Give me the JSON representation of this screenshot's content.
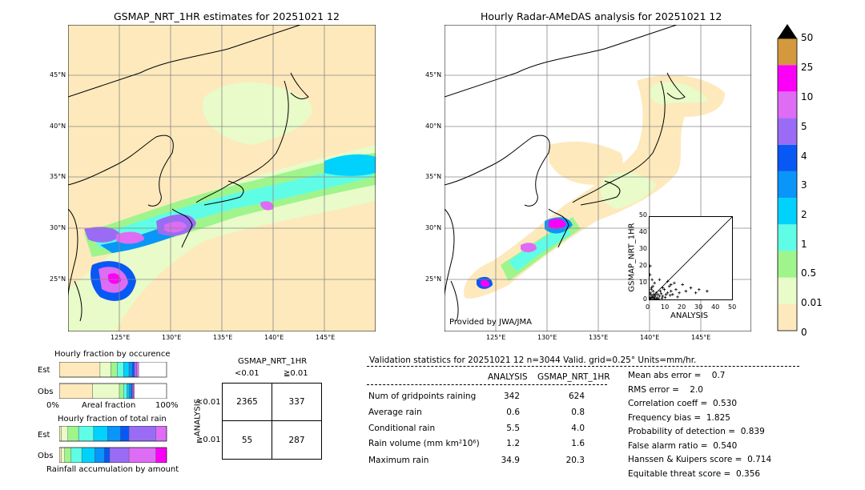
{
  "left_map": {
    "title": "GSMAP_NRT_1HR estimates for 20251021 12",
    "lat_labels": [
      "45°N",
      "40°N",
      "35°N",
      "30°N",
      "25°N"
    ],
    "lon_labels": [
      "125°E",
      "130°E",
      "135°E",
      "140°E",
      "145°E"
    ]
  },
  "right_map": {
    "title": "Hourly Radar-AMeDAS analysis for 20251021 12",
    "lat_labels": [
      "45°N",
      "40°N",
      "35°N",
      "30°N",
      "25°N"
    ],
    "lon_labels": [
      "125°E",
      "130°E",
      "135°E",
      "140°E",
      "145°E"
    ],
    "credit": "Provided by JWA/JMA"
  },
  "colorbar": {
    "labels": [
      "0",
      "0.01",
      "0.5",
      "1",
      "2",
      "3",
      "4",
      "5",
      "10",
      "25",
      "50"
    ],
    "colors": [
      "#fde9bc",
      "#e8fbc8",
      "#9ff58c",
      "#5ffde6",
      "#00d2fd",
      "#0a95f8",
      "#0858f5",
      "#9a6cf5",
      "#de6cf5",
      "#fa00f7",
      "#d4993f"
    ],
    "overflow_color": "#000000"
  },
  "scatter": {
    "ylabel": "GSMAP_NRT_1HR",
    "xlabel": "ANALYSIS",
    "ticks": [
      "0",
      "10",
      "20",
      "30",
      "40",
      "50"
    ]
  },
  "occurrence": {
    "title": "Hourly fraction by occurence",
    "row_labels": [
      "Est",
      "Obs"
    ],
    "axis_left": "0%",
    "axis_mid": "Areal fraction",
    "axis_right": "100%"
  },
  "total_rain": {
    "title": "Hourly fraction of total rain",
    "row_labels": [
      "Est",
      "Obs"
    ],
    "footer": "Rainfall accumulation by amount"
  },
  "contingency": {
    "title": "GSMAP_NRT_1HR",
    "col_labels": [
      "<0.01",
      "≧0.01"
    ],
    "row_axis": "ANALYSIS",
    "row_labels": [
      "<0.01",
      "≧0.01"
    ],
    "cells": [
      "2365",
      "337",
      "55",
      "287"
    ]
  },
  "validation": {
    "header": "Validation statistics for 20251021 12  n=3044 Valid. grid=0.25° Units=mm/hr.",
    "col_analysis": "ANALYSIS",
    "col_gsmap": "GSMAP_NRT_1HR",
    "rows": [
      {
        "label": "Num of gridpoints raining",
        "a": "342",
        "g": "624"
      },
      {
        "label": "Average rain",
        "a": "0.6",
        "g": "0.8"
      },
      {
        "label": "Conditional rain",
        "a": "5.5",
        "g": "4.0"
      },
      {
        "label": "Rain volume (mm km²10⁶)",
        "a": "1.2",
        "g": "1.6"
      },
      {
        "label": "Maximum rain",
        "a": "34.9",
        "g": "20.3"
      }
    ],
    "scores": [
      "Mean abs error =    0.7",
      "RMS error =    2.0",
      "Correlation coeff =  0.530",
      "Frequency bias =  1.825",
      "Probability of detection =  0.839",
      "False alarm ratio =  0.540",
      "Hanssen & Kuipers score =  0.714",
      "Equitable threat score =  0.356"
    ]
  },
  "chart_data": [
    {
      "type": "heatmap",
      "title": "GSMAP_NRT_1HR estimates for 20251021 12",
      "x_ticks": [
        "125°E",
        "130°E",
        "135°E",
        "140°E",
        "145°E"
      ],
      "y_ticks": [
        "45°N",
        "40°N",
        "35°N",
        "30°N",
        "25°N"
      ]
    },
    {
      "type": "heatmap",
      "title": "Hourly Radar-AMeDAS analysis for 20251021 12",
      "x_ticks": [
        "125°E",
        "130°E",
        "135°E",
        "140°E",
        "145°E"
      ],
      "y_ticks": [
        "45°N",
        "40°N",
        "35°N",
        "30°N",
        "25°N"
      ]
    },
    {
      "type": "scatter",
      "xlabel": "ANALYSIS",
      "ylabel": "GSMAP_NRT_1HR",
      "xlim": [
        0,
        50
      ],
      "ylim": [
        0,
        50
      ],
      "points": [
        [
          0.5,
          1.2
        ],
        [
          1,
          0.5
        ],
        [
          1.5,
          2
        ],
        [
          2,
          1
        ],
        [
          2.5,
          3
        ],
        [
          3,
          1.5
        ],
        [
          3.5,
          2.5
        ],
        [
          4,
          4
        ],
        [
          4.5,
          1
        ],
        [
          5,
          3
        ],
        [
          6,
          2
        ],
        [
          6.5,
          5
        ],
        [
          7,
          3.5
        ],
        [
          8,
          2
        ],
        [
          9,
          6
        ],
        [
          10,
          3
        ],
        [
          11,
          4
        ],
        [
          12,
          8
        ],
        [
          13,
          5
        ],
        [
          14,
          3
        ],
        [
          15,
          10
        ],
        [
          16,
          6
        ],
        [
          18,
          4
        ],
        [
          20,
          9
        ],
        [
          22,
          5
        ],
        [
          25,
          7
        ],
        [
          28,
          4
        ],
        [
          30,
          6
        ],
        [
          34.9,
          5
        ],
        [
          1,
          6
        ],
        [
          2,
          8
        ],
        [
          3,
          10
        ],
        [
          1.5,
          12
        ],
        [
          0.3,
          15
        ],
        [
          0.5,
          4
        ],
        [
          0.8,
          3
        ],
        [
          1.2,
          7
        ],
        [
          2.2,
          5
        ],
        [
          2.8,
          0.5
        ],
        [
          3.2,
          0.3
        ],
        [
          4.2,
          0.2
        ],
        [
          5.5,
          0.4
        ],
        [
          7.5,
          0.8
        ],
        [
          9.5,
          1.2
        ],
        [
          12.5,
          2.5
        ],
        [
          17,
          1.5
        ],
        [
          0.2,
          0.3
        ],
        [
          0.4,
          20.3
        ],
        [
          6,
          12
        ],
        [
          8,
          7
        ],
        [
          11,
          11
        ],
        [
          13,
          9
        ]
      ]
    },
    {
      "type": "bar",
      "title": "Hourly fraction by occurence",
      "categories": [
        "Est",
        "Obs"
      ],
      "series": [
        {
          "values": [
            0.38,
            0.31
          ]
        },
        {
          "values": [
            0.1,
            0.25
          ]
        },
        {
          "values": [
            0.06,
            0.04
          ]
        },
        {
          "values": [
            0.06,
            0.03
          ]
        },
        {
          "values": [
            0.05,
            0.02
          ]
        },
        {
          "values": [
            0.03,
            0.02
          ]
        },
        {
          "values": [
            0.02,
            0.01
          ]
        },
        {
          "values": [
            0.02,
            0.01
          ]
        },
        {
          "values": [
            0.02,
            0.01
          ]
        }
      ]
    },
    {
      "type": "bar",
      "title": "Hourly fraction of total rain",
      "categories": [
        "Est",
        "Obs"
      ],
      "series": [
        {
          "values": [
            0.02,
            0.02
          ]
        },
        {
          "values": [
            0.06,
            0.03
          ]
        },
        {
          "values": [
            0.1,
            0.06
          ]
        },
        {
          "values": [
            0.14,
            0.1
          ]
        },
        {
          "values": [
            0.13,
            0.12
          ]
        },
        {
          "values": [
            0.12,
            0.09
          ]
        },
        {
          "values": [
            0.08,
            0.05
          ]
        },
        {
          "values": [
            0.25,
            0.18
          ]
        },
        {
          "values": [
            0.1,
            0.25
          ]
        },
        {
          "values": [
            0.0,
            0.1
          ]
        }
      ]
    }
  ]
}
